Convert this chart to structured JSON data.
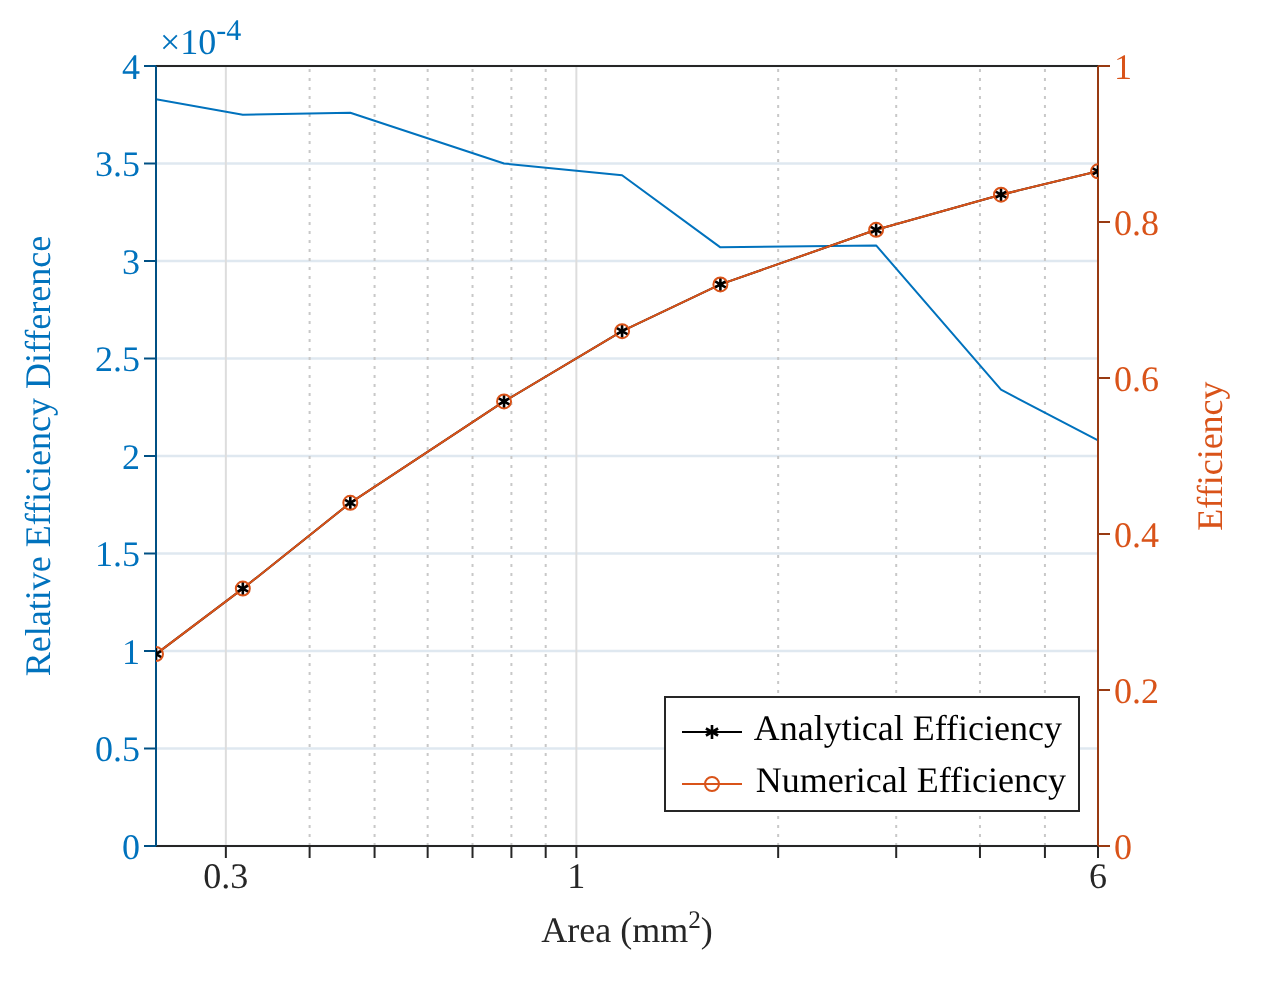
{
  "chart_data": {
    "type": "line",
    "xlabel": "Area (mm$^{2}$)",
    "ylabel": "Relative Efficiency Difference",
    "y2label": "Efficiency",
    "annotations": [
      "×10$^{-4}$"
    ],
    "x": [
      0.236,
      0.318,
      0.46,
      0.78,
      1.17,
      1.64,
      2.8,
      4.3,
      6
    ],
    "series": [
      {
        "color": "#0072bd",
        "marker": "none",
        "values": [
          3.83,
          3.75,
          3.76,
          3.5,
          3.44,
          3.07,
          3.08,
          2.34,
          2.08
        ]
      },
      {
        "name": "Analytical Efficiency",
        "color": "#000000",
        "marker": "cross",
        "axis": "y2",
        "values": [
          0.246,
          0.33,
          0.44,
          0.57,
          0.66,
          0.72,
          0.79,
          0.835,
          0.865
        ]
      },
      {
        "name": "Numerical Efficiency",
        "color": "#d95319",
        "marker": "circle",
        "axis": "y2",
        "values": [
          0.246,
          0.33,
          0.44,
          0.57,
          0.66,
          0.72,
          0.79,
          0.835,
          0.865
        ]
      }
    ],
    "log": "x",
    "xlim": [
      0.236,
      6
    ],
    "xticks": [
      0.3,
      {
        "value": 0.4,
        "label": null
      },
      {
        "value": 0.5,
        "label": null
      },
      {
        "value": 0.6,
        "label": null
      },
      {
        "value": 0.7,
        "label": null
      },
      {
        "value": 0.8,
        "label": null
      },
      {
        "value": 0.9,
        "label": null
      },
      1,
      {
        "value": 2,
        "label": null
      },
      {
        "value": 3,
        "label": null
      },
      {
        "value": 4,
        "label": null
      },
      {
        "value": 5,
        "label": null
      },
      6
    ],
    "ylim": [
      0,
      4
    ],
    "yticks": [
      0,
      0.5,
      1,
      1.5,
      2,
      2.5,
      3,
      3.5,
      4
    ],
    "y2lim": [
      0,
      1
    ],
    "y2ticks": [
      0,
      0.2,
      0.4,
      0.6,
      0.8,
      1
    ],
    "grid": true,
    "legend": "bottom right",
    "line_style": "solid"
  }
}
